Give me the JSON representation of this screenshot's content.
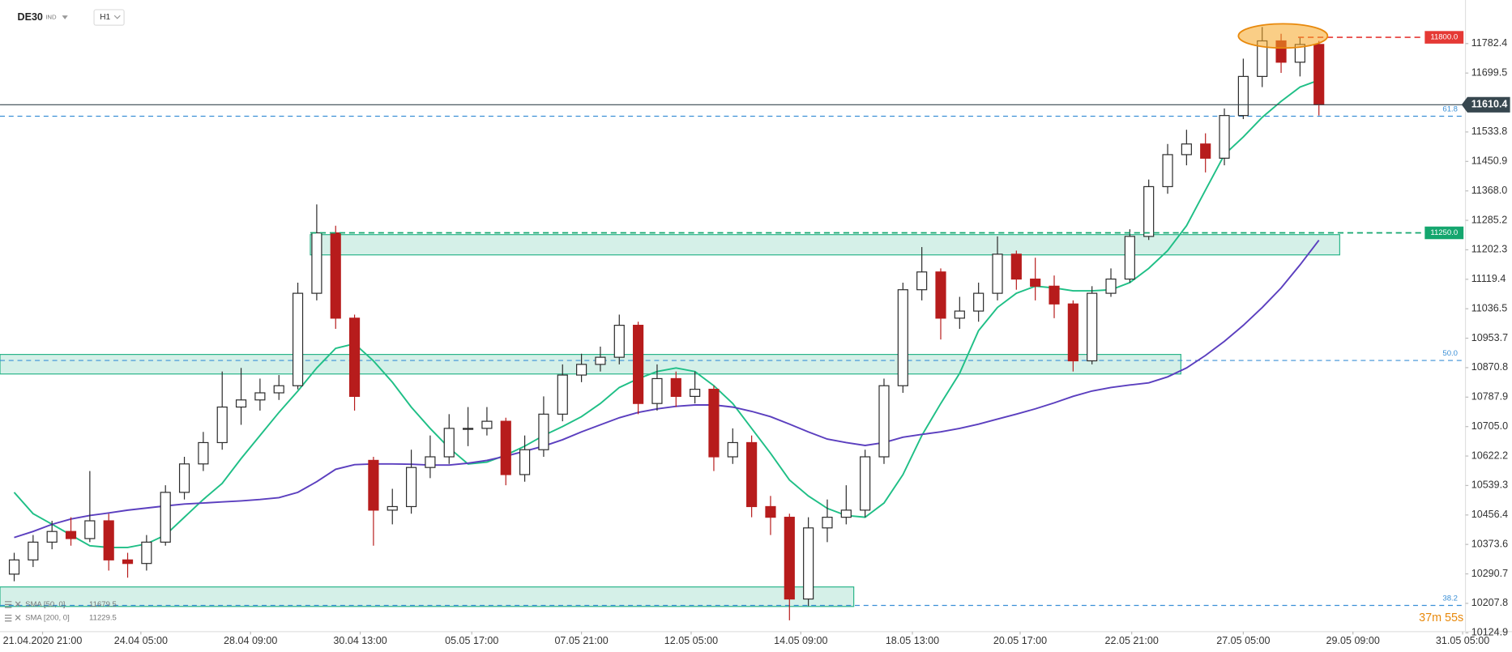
{
  "header": {
    "symbol": "DE30",
    "market": "IND",
    "timeframe": "H1"
  },
  "chart_data": {
    "type": "candlestick",
    "x": [
      0,
      1,
      2,
      3,
      4,
      5,
      6,
      7,
      8,
      9,
      10,
      11,
      12,
      13,
      14,
      15,
      16,
      17,
      18,
      19,
      20,
      21,
      22,
      23,
      24,
      25,
      26,
      27,
      28,
      29,
      30,
      31,
      32,
      33,
      34,
      35,
      36,
      37,
      38,
      39,
      40,
      41,
      42,
      43,
      44,
      45,
      46,
      47,
      48,
      49,
      50,
      51,
      52,
      53,
      54,
      55,
      56,
      57,
      58,
      59,
      60,
      61,
      62,
      63,
      64,
      65,
      66,
      67,
      68,
      69
    ],
    "open": [
      10290,
      10330,
      10380,
      10410,
      10390,
      10440,
      10330,
      10320,
      10380,
      10520,
      10600,
      10660,
      10760,
      10780,
      10800,
      10820,
      11080,
      11250,
      11010,
      10610,
      10470,
      10480,
      10590,
      10620,
      10700,
      10700,
      10720,
      10570,
      10640,
      10740,
      10850,
      10880,
      10900,
      10990,
      10770,
      10840,
      10790,
      10810,
      10620,
      10660,
      10480,
      10450,
      10220,
      10420,
      10450,
      10470,
      10620,
      10820,
      11090,
      11140,
      11010,
      11030,
      11080,
      11190,
      11120,
      11100,
      11050,
      10890,
      11080,
      11120,
      11240,
      11380,
      11470,
      11500,
      11460,
      11580,
      11690,
      11790,
      11730,
      11780
    ],
    "high": [
      10350,
      10400,
      10440,
      10450,
      10580,
      10460,
      10350,
      10400,
      10540,
      10620,
      10690,
      10860,
      10870,
      10840,
      10850,
      11110,
      11330,
      11270,
      11020,
      10620,
      10530,
      10640,
      10680,
      10740,
      10760,
      10760,
      10730,
      10680,
      10790,
      10880,
      10910,
      10930,
      11020,
      11000,
      10880,
      10860,
      10860,
      10820,
      10700,
      10680,
      10510,
      10460,
      10450,
      10500,
      10540,
      10640,
      10840,
      11110,
      11210,
      11150,
      11070,
      11110,
      11240,
      11200,
      11180,
      11130,
      11060,
      11100,
      11150,
      11260,
      11400,
      11500,
      11540,
      11530,
      11600,
      11740,
      11829,
      11810,
      11800,
      11790
    ],
    "low": [
      10270,
      10310,
      10360,
      10370,
      10380,
      10300,
      10280,
      10300,
      10370,
      10500,
      10580,
      10640,
      10710,
      10750,
      10780,
      10810,
      11060,
      10980,
      10750,
      10370,
      10430,
      10460,
      10560,
      10600,
      10650,
      10680,
      10540,
      10550,
      10620,
      10720,
      10830,
      10860,
      10880,
      10740,
      10750,
      10760,
      10770,
      10580,
      10600,
      10450,
      10400,
      10160,
      10200,
      10380,
      10430,
      10450,
      10600,
      10800,
      11060,
      10950,
      10980,
      11000,
      11060,
      11090,
      11060,
      11010,
      10860,
      10880,
      11070,
      11110,
      11230,
      11360,
      11440,
      11420,
      11440,
      11570,
      11660,
      11700,
      11690,
      11580
    ],
    "close": [
      10330,
      10380,
      10410,
      10390,
      10440,
      10330,
      10320,
      10380,
      10520,
      10600,
      10660,
      10760,
      10780,
      10800,
      10820,
      11080,
      11250,
      11010,
      10790,
      10470,
      10480,
      10590,
      10620,
      10700,
      10700,
      10720,
      10570,
      10640,
      10740,
      10850,
      10880,
      10900,
      10990,
      10770,
      10840,
      10790,
      10810,
      10620,
      10660,
      10480,
      10450,
      10220,
      10420,
      10450,
      10470,
      10620,
      10820,
      11090,
      11140,
      11010,
      11030,
      11080,
      11190,
      11120,
      11100,
      11050,
      10890,
      11080,
      11120,
      11240,
      11380,
      11470,
      11500,
      11460,
      11580,
      11690,
      11790,
      11730,
      11780,
      11610.4
    ],
    "up_color": "#2b2b2b",
    "down_color": "#b71c1c",
    "series": [
      {
        "name": "SMA [50, 0]",
        "color": "#1fbf86",
        "values": [
          10520,
          10460,
          10430,
          10400,
          10370,
          10365,
          10365,
          10375,
          10400,
          10450,
          10500,
          10545,
          10615,
          10680,
          10745,
          10805,
          10870,
          10925,
          10938,
          10890,
          10830,
          10760,
          10700,
          10645,
          10600,
          10605,
          10625,
          10650,
          10680,
          10705,
          10733,
          10770,
          10815,
          10840,
          10860,
          10870,
          10860,
          10820,
          10770,
          10700,
          10630,
          10555,
          10510,
          10475,
          10455,
          10450,
          10490,
          10570,
          10680,
          10770,
          10855,
          10975,
          11040,
          11080,
          11100,
          11095,
          11087,
          11087,
          11090,
          11110,
          11150,
          11200,
          11270,
          11370,
          11470,
          11520,
          11575,
          11620,
          11660,
          11679.5
        ]
      },
      {
        "name": "SMA [200, 0]",
        "color": "#5b3fbf",
        "values": [
          10393,
          10410,
          10430,
          10445,
          10455,
          10462,
          10470,
          10476,
          10482,
          10487,
          10490,
          10493,
          10496,
          10500,
          10505,
          10520,
          10550,
          10585,
          10598,
          10600,
          10600,
          10599,
          10597,
          10597,
          10602,
          10610,
          10622,
          10636,
          10650,
          10668,
          10690,
          10710,
          10730,
          10745,
          10755,
          10762,
          10766,
          10766,
          10760,
          10748,
          10733,
          10712,
          10690,
          10670,
          10660,
          10652,
          10660,
          10675,
          10683,
          10690,
          10700,
          10712,
          10726,
          10740,
          10755,
          10772,
          10790,
          10805,
          10815,
          10822,
          10828,
          10845,
          10870,
          10905,
          10945,
          10990,
          11040,
          11095,
          11160,
          11229.5
        ]
      }
    ],
    "xlim": [
      -0.75,
      76.75
    ],
    "ylim": [
      10120,
      11905
    ],
    "xticks": [
      {
        "value": 1.5,
        "label": "21.04.2020  21:00"
      },
      {
        "value": 6.7,
        "label": "24.04  05:00"
      },
      {
        "value": 12.5,
        "label": "28.04  09:00"
      },
      {
        "value": 18.3,
        "label": "30.04  13:00"
      },
      {
        "value": 24.2,
        "label": "05.05  17:00"
      },
      {
        "value": 30,
        "label": "07.05  21:00"
      },
      {
        "value": 35.8,
        "label": "12.05  05:00"
      },
      {
        "value": 41.6,
        "label": "14.05  09:00"
      },
      {
        "value": 47.5,
        "label": "18.05  13:00"
      },
      {
        "value": 53.2,
        "label": "20.05  17:00"
      },
      {
        "value": 59.1,
        "label": "22.05  21:00"
      },
      {
        "value": 65,
        "label": "27.05  05:00"
      },
      {
        "value": 70.8,
        "label": "29.05  09:00"
      },
      {
        "value": 76.6,
        "label": "31.05  05:00"
      }
    ],
    "yticks": [
      11782.4,
      11699.5,
      11533.8,
      11450.9,
      {
        "value": 11368,
        "label": "11368.0"
      },
      11285.2,
      11202.3,
      11119.4,
      11036.5,
      10953.7,
      10870.8,
      10787.9,
      {
        "value": 10705,
        "label": "10705.0"
      },
      10622.2,
      10539.3,
      10456.4,
      10373.6,
      10290.7,
      10207.8,
      10124.9
    ],
    "zones": [
      {
        "x": [
          15.66,
          70.1
        ],
        "y": [
          11188,
          11245
        ],
        "color": "#2bb58a"
      },
      {
        "x": [
          -0.75,
          61.7
        ],
        "y": [
          10853,
          10908
        ],
        "color": "#2bb58a"
      },
      {
        "x": [
          -0.75,
          44.4
        ],
        "y": [
          10199,
          10254
        ],
        "color": "#2bb58a"
      }
    ],
    "levels": [
      {
        "value": 11800,
        "label": "11800.0",
        "color": "#e53935",
        "from": 67.9
      },
      {
        "value": 11250,
        "label": "11250.0",
        "color": "#14a66e",
        "from": 15.66
      }
    ],
    "fib": [
      {
        "label": "61.8",
        "value": 11578
      },
      {
        "label": "50.0",
        "value": 10891
      },
      {
        "label": "38.2",
        "value": 10202
      }
    ],
    "fib_color": "#3a8fd6",
    "last_price_color": "#37474f",
    "highlight": {
      "x": 67.1,
      "y": 11804,
      "color": "#f5a623"
    },
    "countdown": "37m 55s"
  }
}
